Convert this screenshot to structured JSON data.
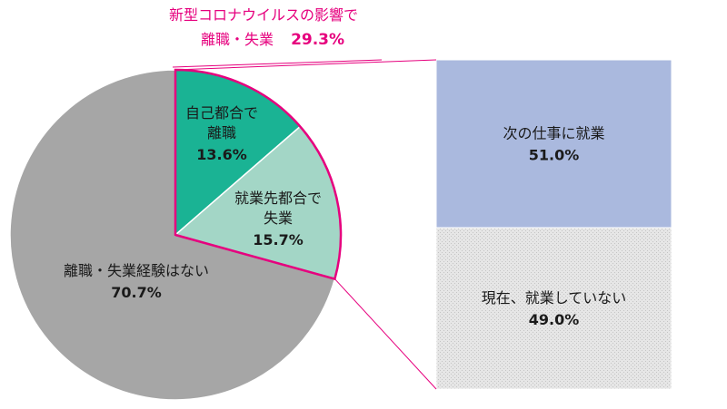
{
  "chart_data": [
    {
      "type": "pie",
      "slices": [
        {
          "name": "離職・失業経験はない",
          "label_lines": [
            "離職・失業経験はない"
          ],
          "value": 70.7,
          "value_label": "70.7%",
          "color": "#a6a6a6"
        },
        {
          "name": "自己都合で離職",
          "label_lines": [
            "自己都合で",
            "離職"
          ],
          "value": 13.6,
          "value_label": "13.6%",
          "color": "#1ab394"
        },
        {
          "name": "就業先都合で失業",
          "label_lines": [
            "就業先都合で",
            "失業"
          ],
          "value": 15.7,
          "value_label": "15.7%",
          "color": "#a3d6c6"
        }
      ]
    },
    {
      "type": "bar",
      "stacked": true,
      "segments": [
        {
          "name": "次の仕事に就業",
          "value": 51.0,
          "value_label": "51.0%",
          "color": "#aab9de"
        },
        {
          "name": "現在、就業していない",
          "value": 49.0,
          "value_label": "49.0%",
          "color": "#e3e3e3",
          "pattern": "dotted"
        }
      ]
    }
  ],
  "callout": {
    "line1": "新型コロナウイルスの影響で",
    "line2_label": "離職・失業",
    "line2_value": "29.3%",
    "color": "#e6007e"
  }
}
